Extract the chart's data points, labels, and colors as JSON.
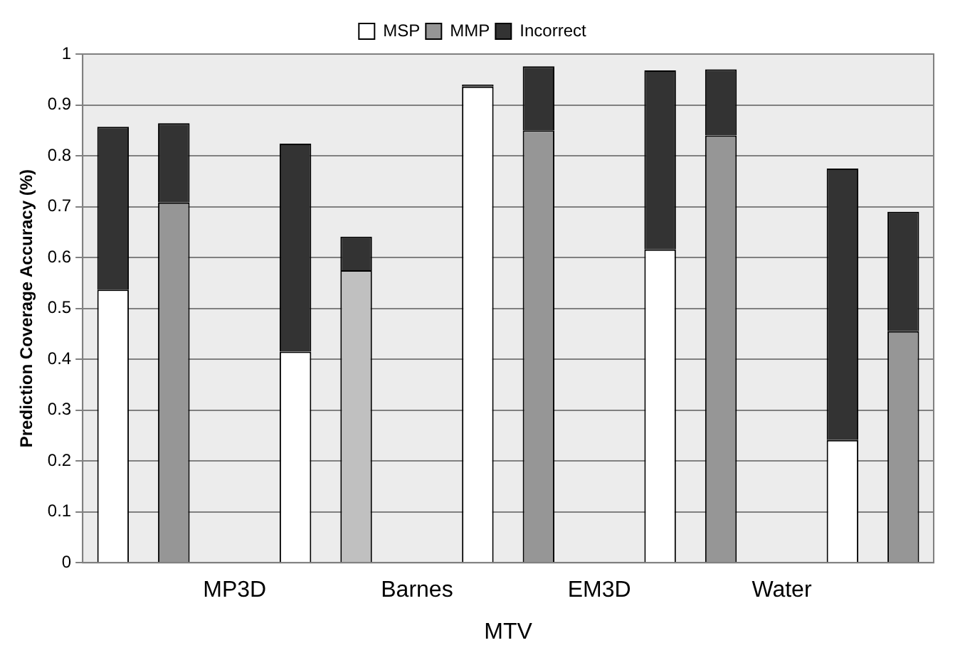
{
  "chart_data": {
    "type": "bar",
    "stacked": true,
    "ylabel": "Prediction Coverage Accuracy (%)",
    "xlabel": "MTV",
    "categories": [
      null,
      null,
      "MP3D",
      null,
      null,
      "Barnes",
      null,
      null,
      "EM3D",
      null,
      null,
      "Water",
      null,
      null
    ],
    "series": [
      {
        "name": "MSP",
        "color": "#ffffff",
        "values": [
          0.537,
          null,
          null,
          0.415,
          null,
          null,
          0.936,
          null,
          null,
          0.616,
          null,
          null,
          0.241,
          null
        ]
      },
      {
        "name": "MMP",
        "color": "#969696",
        "colors": [
          "#969696",
          "#969696",
          "#969696",
          "#969696",
          "#c0c0c0",
          "#969696",
          "#969696",
          "#969696",
          "#969696",
          "#969696",
          "#969696",
          "#969696",
          "#969696",
          "#969696"
        ],
        "values": [
          null,
          0.708,
          null,
          null,
          0.575,
          null,
          null,
          0.85,
          null,
          null,
          0.84,
          null,
          null,
          0.455
        ]
      },
      {
        "name": "Incorrect",
        "color": "#333333",
        "values": [
          0.32,
          0.156,
          null,
          0.409,
          0.066,
          null,
          0.004,
          0.126,
          null,
          0.352,
          0.13,
          null,
          0.534,
          0.235
        ]
      }
    ],
    "ylim": [
      0,
      1
    ],
    "yticks": [
      0,
      0.1,
      0.2,
      0.3,
      0.4,
      0.5,
      0.6,
      0.7,
      0.8,
      0.9,
      1
    ],
    "grid": "y",
    "legend": "top"
  }
}
